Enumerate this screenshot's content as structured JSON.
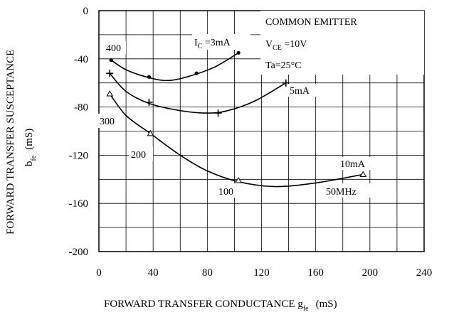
{
  "chart_data": {
    "type": "line",
    "xlabel": "FORWARD TRANSFER CONDUCTANCE g",
    "xlabel_sub": "fe",
    "xlabel_unit": "(mS)",
    "ylabel": "FORWARD TRANSFER SUSCEPTANCE",
    "ylabel_symbol": "b",
    "ylabel_sub": "fe",
    "ylabel_unit": "(mS)",
    "xlim": [
      0,
      240
    ],
    "ylim": [
      -200,
      0
    ],
    "xticks": [
      "0",
      "40",
      "80",
      "120",
      "160",
      "200",
      "240"
    ],
    "yticks": [
      "0",
      "-40",
      "-80",
      "-120",
      "-160",
      "-200"
    ],
    "grid": true,
    "conditions": {
      "line1": "COMMON EMITTER",
      "line2_main": "V",
      "line2_sub": "CE",
      "line2_rest": " =10V",
      "line3": "Ta=25°C"
    },
    "series": [
      {
        "curve": [
          [
            9,
            -41
          ],
          [
            20,
            -49
          ],
          [
            35,
            -55
          ],
          [
            50,
            -58
          ],
          [
            65,
            -55
          ],
          [
            85,
            -47
          ],
          [
            103,
            -35
          ]
        ],
        "points": [
          [
            9,
            -41
          ],
          [
            37,
            -55
          ],
          [
            72,
            -52
          ],
          [
            103,
            -35
          ]
        ],
        "marker": "dot",
        "label_main": "I",
        "label_sub": "C",
        "label_rest": " =3mA"
      },
      {
        "curve": [
          [
            8,
            -52
          ],
          [
            20,
            -67
          ],
          [
            37,
            -77
          ],
          [
            60,
            -83
          ],
          [
            80,
            -85
          ],
          [
            95,
            -83
          ],
          [
            115,
            -75
          ],
          [
            138,
            -60
          ]
        ],
        "points": [
          [
            8,
            -52
          ],
          [
            37,
            -76
          ],
          [
            88,
            -85
          ],
          [
            138,
            -60
          ]
        ],
        "marker": "cross",
        "label": "5mA"
      },
      {
        "curve": [
          [
            8,
            -69
          ],
          [
            20,
            -87
          ],
          [
            38,
            -102
          ],
          [
            60,
            -120
          ],
          [
            80,
            -133
          ],
          [
            103,
            -142
          ],
          [
            130,
            -146
          ],
          [
            160,
            -143
          ],
          [
            195,
            -136
          ]
        ],
        "points": [
          [
            8,
            -69
          ],
          [
            38,
            -102
          ],
          [
            103,
            -141
          ],
          [
            195,
            -136
          ]
        ],
        "marker": "triangle",
        "label": "10mA"
      }
    ],
    "frequency_labels": [
      "400",
      "300",
      "200",
      "100",
      "50MHz"
    ]
  }
}
